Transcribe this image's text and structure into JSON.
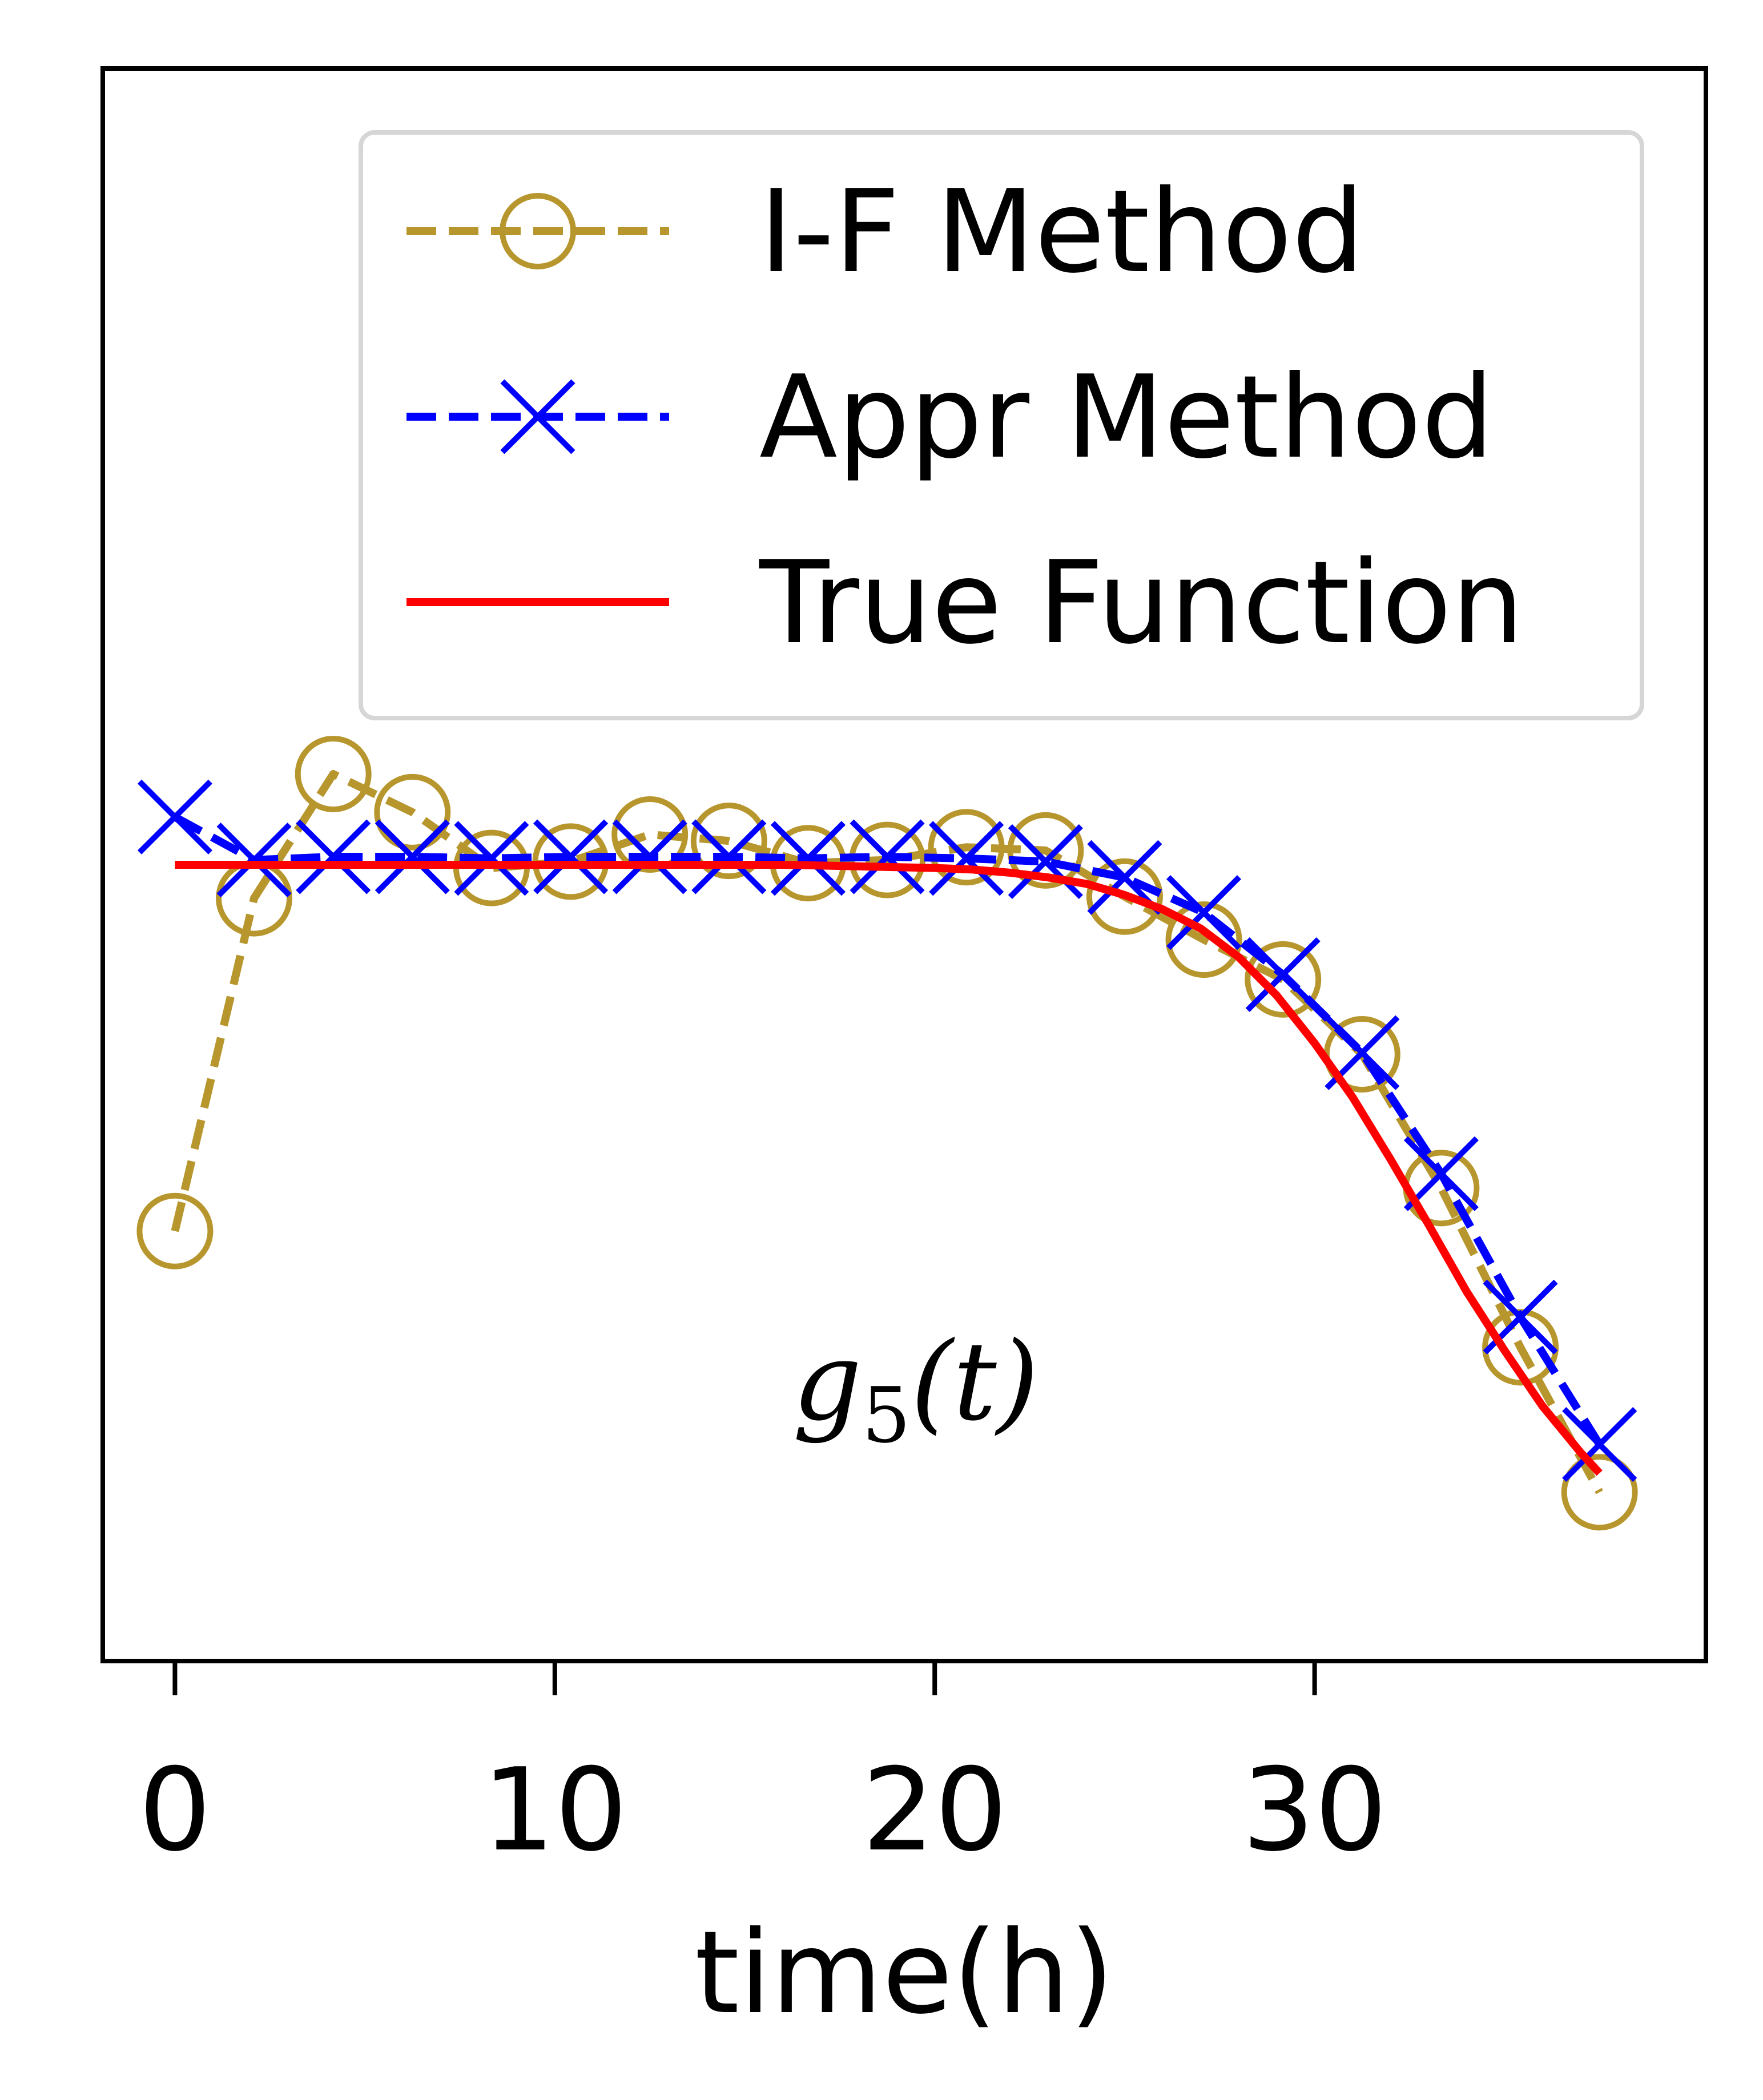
{
  "chart_data": {
    "type": "line",
    "title": "",
    "xlabel": "time(h)",
    "ylabel": "",
    "xlim": [
      -1.9,
      40.3
    ],
    "ylim": [
      0.0,
      1.0
    ],
    "x_ticks": [
      0,
      10,
      20,
      30
    ],
    "x_tick_labels": [
      "0",
      "10",
      "20",
      "30"
    ],
    "y_ticks_visible": false,
    "grid": false,
    "legend_position": "upper-right",
    "annotation": {
      "base": "g",
      "subscript": "5",
      "suffix": "(t)",
      "x": 19.5,
      "y": 0.152
    },
    "series": [
      {
        "name": "I-F Method",
        "color": "#B8962E",
        "line_style": "dashed",
        "marker": "open-circle",
        "x": [
          0,
          2.083,
          4.167,
          6.25,
          8.333,
          10.417,
          12.5,
          14.583,
          16.667,
          18.75,
          20.833,
          22.917,
          25.0,
          27.083,
          29.167,
          31.25,
          33.333,
          35.417,
          37.5
        ],
        "y": [
          0.27,
          0.479,
          0.557,
          0.533,
          0.498,
          0.502,
          0.519,
          0.515,
          0.501,
          0.503,
          0.511,
          0.509,
          0.48,
          0.453,
          0.428,
          0.381,
          0.297,
          0.197,
          0.106
        ]
      },
      {
        "name": "Appr Method",
        "color": "#0000FF",
        "line_style": "dashed",
        "marker": "x",
        "x": [
          0,
          2.083,
          4.167,
          6.25,
          8.333,
          10.417,
          12.5,
          14.583,
          16.667,
          18.75,
          20.833,
          22.917,
          25.0,
          27.083,
          29.167,
          31.25,
          33.333,
          35.417,
          37.5
        ],
        "y": [
          0.53,
          0.503,
          0.505,
          0.505,
          0.504,
          0.505,
          0.505,
          0.505,
          0.504,
          0.505,
          0.504,
          0.502,
          0.492,
          0.47,
          0.431,
          0.382,
          0.306,
          0.216,
          0.136
        ]
      },
      {
        "name": "True Function",
        "color": "#FF0000",
        "line_style": "solid",
        "marker": "none",
        "x": [
          0,
          2,
          4,
          6,
          8,
          10,
          12,
          14,
          16,
          18,
          20,
          21,
          22,
          23,
          24,
          25,
          26,
          27,
          28,
          29,
          30,
          31,
          32,
          33,
          34,
          35,
          36,
          37,
          37.5
        ],
        "y": [
          0.5,
          0.5,
          0.5,
          0.5,
          0.5,
          0.5,
          0.5,
          0.5,
          0.5,
          0.499,
          0.498,
          0.497,
          0.495,
          0.492,
          0.488,
          0.481,
          0.472,
          0.46,
          0.442,
          0.418,
          0.388,
          0.354,
          0.315,
          0.274,
          0.232,
          0.195,
          0.16,
          0.131,
          0.118
        ]
      }
    ]
  }
}
